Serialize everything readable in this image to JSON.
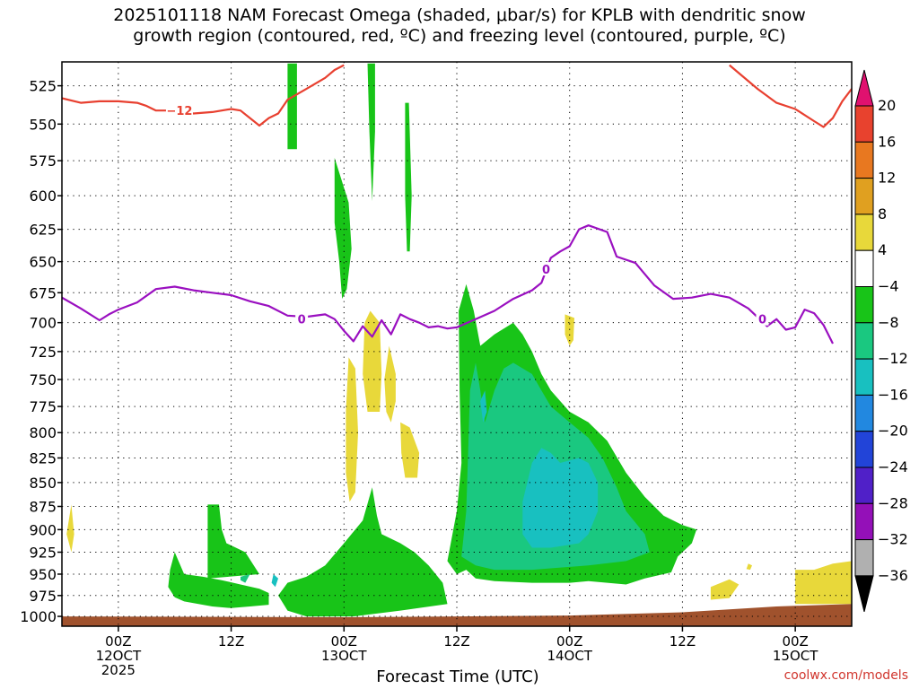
{
  "chart_data": {
    "type": "heatmap",
    "title": "2025101118 NAM Forecast Omega (shaded, μbar/s) for KPLB with dendritic snow\ngrowth region (contoured, red, ºC) and freezing level (contoured, purple, ºC)",
    "xlabel": "Forecast Time (UTC)",
    "credit": "coolwx.com/models",
    "y_ticks": [
      525,
      550,
      575,
      600,
      625,
      650,
      675,
      700,
      725,
      750,
      775,
      800,
      825,
      850,
      875,
      900,
      925,
      950,
      975,
      1000
    ],
    "y_range_hpa": [
      510,
      1012
    ],
    "y_scale": "log",
    "x_range_hours": [
      -6,
      78
    ],
    "x_ticks": [
      {
        "hour": 0,
        "lines": [
          "00Z",
          "12OCT",
          "2025"
        ]
      },
      {
        "hour": 12,
        "lines": [
          "12Z"
        ]
      },
      {
        "hour": 24,
        "lines": [
          "00Z",
          "13OCT"
        ]
      },
      {
        "hour": 36,
        "lines": [
          "12Z"
        ]
      },
      {
        "hour": 48,
        "lines": [
          "00Z",
          "14OCT"
        ]
      },
      {
        "hour": 60,
        "lines": [
          "12Z"
        ]
      },
      {
        "hour": 72,
        "lines": [
          "00Z",
          "15OCT"
        ]
      }
    ],
    "grid": true,
    "colorbar": {
      "placement": "right",
      "labels": [
        "20",
        "16",
        "12",
        "8",
        "4",
        "−4",
        "−8",
        "−12",
        "−16",
        "−20",
        "−24",
        "−28",
        "−32",
        "−36"
      ],
      "colors": [
        "#e0116f",
        "#e8422e",
        "#e87820",
        "#e0a020",
        "#e8d83a",
        "#ffffff",
        "#18c418",
        "#1ac880",
        "#18c0c0",
        "#2288e0",
        "#2244d8",
        "#5020c8",
        "#9410b8",
        "#b0b0b0",
        "#000000"
      ]
    },
    "colors": {
      "dgz_line": "#e84030",
      "freezing_line": "#9a10c0",
      "ground": "#a0522d",
      "omega_neg4": "#18c418",
      "omega_neg8": "#1ac880",
      "omega_neg12": "#18c0c0",
      "omega_pos4": "#e8d83a"
    },
    "contour_labels": [
      {
        "text": "−12",
        "hour": 6.5,
        "p": 541
      },
      {
        "text": "0",
        "hour": 19.5,
        "p": 697
      },
      {
        "text": "0",
        "hour": 45.5,
        "p": 656
      },
      {
        "text": "0",
        "hour": 68.5,
        "p": 697
      }
    ],
    "dgz_minus12": [
      [
        [
          -6,
          533
        ],
        [
          -4,
          536
        ],
        [
          -2,
          535
        ],
        [
          0,
          535
        ],
        [
          2,
          536
        ],
        [
          3,
          538
        ],
        [
          4,
          541
        ],
        [
          6,
          541
        ],
        [
          8,
          543
        ],
        [
          10,
          542
        ],
        [
          12,
          540
        ],
        [
          13,
          541
        ],
        [
          15,
          551
        ],
        [
          16,
          546
        ],
        [
          17,
          543
        ],
        [
          18,
          534
        ],
        [
          20,
          527
        ],
        [
          22,
          520
        ],
        [
          23,
          515
        ],
        [
          24,
          512
        ]
      ],
      [
        [
          65,
          512
        ],
        [
          66,
          517
        ],
        [
          68,
          527
        ],
        [
          70,
          536
        ],
        [
          72,
          540
        ],
        [
          74,
          548
        ],
        [
          75,
          552
        ],
        [
          76,
          546
        ],
        [
          77,
          535
        ],
        [
          78,
          527
        ]
      ]
    ],
    "freezing_level_0c": [
      [
        -6,
        679
      ],
      [
        -4,
        688
      ],
      [
        -2,
        698
      ],
      [
        -1,
        693
      ],
      [
        0,
        689
      ],
      [
        2,
        683
      ],
      [
        4,
        672
      ],
      [
        6,
        670
      ],
      [
        8,
        673
      ],
      [
        10,
        675
      ],
      [
        12,
        677
      ],
      [
        14,
        682
      ],
      [
        16,
        686
      ],
      [
        18,
        694
      ],
      [
        20,
        695
      ],
      [
        22,
        693
      ],
      [
        23,
        697
      ],
      [
        24,
        707
      ],
      [
        25,
        716
      ],
      [
        26,
        703
      ],
      [
        27,
        712
      ],
      [
        28,
        698
      ],
      [
        29,
        710
      ],
      [
        30,
        693
      ],
      [
        31,
        697
      ],
      [
        32,
        700
      ],
      [
        33,
        704
      ],
      [
        34,
        703
      ],
      [
        35,
        705
      ],
      [
        36,
        704
      ],
      [
        38,
        697
      ],
      [
        40,
        690
      ],
      [
        42,
        680
      ],
      [
        44,
        673
      ],
      [
        45,
        667
      ],
      [
        46,
        647
      ],
      [
        47,
        642
      ],
      [
        48,
        638
      ],
      [
        49,
        625
      ],
      [
        50,
        622
      ],
      [
        52,
        627
      ],
      [
        53,
        646
      ],
      [
        55,
        651
      ],
      [
        57,
        669
      ],
      [
        59,
        680
      ],
      [
        61,
        679
      ],
      [
        63,
        676
      ],
      [
        65,
        679
      ],
      [
        67,
        688
      ],
      [
        69,
        703
      ],
      [
        70,
        697
      ],
      [
        71,
        706
      ],
      [
        72,
        704
      ],
      [
        73,
        689
      ],
      [
        74,
        692
      ],
      [
        75,
        702
      ],
      [
        76,
        718
      ]
    ],
    "omega_areas": [
      {
        "level": "-4",
        "points": [
          [
            18,
            511
          ],
          [
            19,
            511
          ],
          [
            19,
            567
          ],
          [
            18,
            567
          ]
        ]
      },
      {
        "level": "-4",
        "points": [
          [
            26.5,
            511
          ],
          [
            27.3,
            511
          ],
          [
            27.3,
            555
          ],
          [
            27,
            604
          ],
          [
            26.7,
            555
          ]
        ]
      },
      {
        "level": "-4",
        "points": [
          [
            30.5,
            536
          ],
          [
            30.9,
            536
          ],
          [
            31.2,
            600
          ],
          [
            31,
            642
          ],
          [
            30.7,
            642
          ],
          [
            30.5,
            600
          ]
        ]
      },
      {
        "level": "-4",
        "points": [
          [
            23,
            573
          ],
          [
            24.5,
            605
          ],
          [
            24.8,
            640
          ],
          [
            24.3,
            672
          ],
          [
            23.8,
            680
          ],
          [
            23.5,
            650
          ],
          [
            23,
            620
          ]
        ]
      },
      {
        "level": "-4",
        "points": [
          [
            6,
            925
          ],
          [
            7,
            950
          ],
          [
            9,
            953
          ],
          [
            11,
            957
          ],
          [
            13,
            962
          ],
          [
            15,
            967
          ],
          [
            16,
            972
          ],
          [
            16,
            986
          ],
          [
            14,
            988
          ],
          [
            12,
            990
          ],
          [
            10,
            988
          ],
          [
            9,
            986
          ],
          [
            7,
            982
          ],
          [
            6,
            977
          ],
          [
            5.3,
            965
          ],
          [
            5.5,
            945
          ]
        ]
      },
      {
        "level": "-4",
        "points": [
          [
            9.5,
            873
          ],
          [
            10.7,
            873
          ],
          [
            11,
            900
          ],
          [
            11.5,
            915
          ],
          [
            13.5,
            925
          ],
          [
            15,
            950
          ],
          [
            9.5,
            955
          ]
        ]
      },
      {
        "level": "-4",
        "points": [
          [
            18,
            960
          ],
          [
            20,
            953
          ],
          [
            22,
            940
          ],
          [
            24,
            915
          ],
          [
            26,
            890
          ],
          [
            27,
            855
          ],
          [
            27.5,
            885
          ],
          [
            28,
            905
          ],
          [
            30,
            915
          ],
          [
            31.5,
            925
          ],
          [
            33,
            940
          ],
          [
            34.5,
            960
          ],
          [
            35,
            985
          ],
          [
            30,
            993
          ],
          [
            25,
            1000
          ],
          [
            20,
            1000
          ],
          [
            18,
            993
          ],
          [
            17,
            975
          ]
        ]
      },
      {
        "level": "-4",
        "points": [
          [
            35,
            935
          ],
          [
            36,
            880
          ],
          [
            36.5,
            830
          ],
          [
            36.3,
            760
          ],
          [
            36.2,
            690
          ],
          [
            37,
            668
          ],
          [
            37.8,
            690
          ],
          [
            38.5,
            720
          ],
          [
            40,
            710
          ],
          [
            42,
            700
          ],
          [
            43,
            710
          ],
          [
            44,
            725
          ],
          [
            45,
            745
          ],
          [
            46,
            760
          ],
          [
            48,
            780
          ],
          [
            50,
            790
          ],
          [
            52,
            808
          ],
          [
            54,
            840
          ],
          [
            56,
            865
          ],
          [
            58,
            885
          ],
          [
            60,
            895
          ],
          [
            61.5,
            900
          ],
          [
            61,
            915
          ],
          [
            59.5,
            930
          ],
          [
            58.8,
            948
          ],
          [
            56,
            955
          ],
          [
            54,
            962
          ],
          [
            50,
            958
          ],
          [
            48,
            960
          ],
          [
            44,
            960
          ],
          [
            40,
            958
          ],
          [
            38,
            955
          ],
          [
            37,
            945
          ],
          [
            36,
            950
          ]
        ]
      },
      {
        "level": "-8",
        "points": [
          [
            36.5,
            930
          ],
          [
            37,
            880
          ],
          [
            37.2,
            820
          ],
          [
            37.4,
            760
          ],
          [
            38,
            735
          ],
          [
            38.5,
            760
          ],
          [
            39,
            790
          ],
          [
            40,
            760
          ],
          [
            41,
            740
          ],
          [
            42,
            735
          ],
          [
            44,
            745
          ],
          [
            45,
            760
          ],
          [
            46,
            775
          ],
          [
            48,
            790
          ],
          [
            50,
            805
          ],
          [
            51.5,
            825
          ],
          [
            53,
            855
          ],
          [
            54,
            880
          ],
          [
            56,
            905
          ],
          [
            56.5,
            925
          ],
          [
            54,
            935
          ],
          [
            50,
            940
          ],
          [
            44,
            945
          ],
          [
            40,
            945
          ],
          [
            38,
            940
          ]
        ]
      },
      {
        "level": "-8",
        "points": [
          [
            13,
            953
          ],
          [
            14,
            950
          ],
          [
            13.5,
            960
          ],
          [
            13,
            957
          ]
        ]
      },
      {
        "level": "-12",
        "points": [
          [
            43,
            870
          ],
          [
            44,
            830
          ],
          [
            45,
            815
          ],
          [
            46,
            820
          ],
          [
            47,
            830
          ],
          [
            49,
            825
          ],
          [
            50,
            830
          ],
          [
            51,
            850
          ],
          [
            51,
            880
          ],
          [
            50,
            905
          ],
          [
            49,
            915
          ],
          [
            46,
            920
          ],
          [
            44,
            920
          ],
          [
            43,
            905
          ]
        ]
      },
      {
        "level": "-12",
        "points": [
          [
            38.5,
            770
          ],
          [
            39,
            760
          ],
          [
            39.2,
            780
          ],
          [
            38.8,
            790
          ]
        ]
      },
      {
        "level": "-12",
        "points": [
          [
            16.5,
            950
          ],
          [
            17,
            955
          ],
          [
            16.7,
            965
          ],
          [
            16.3,
            960
          ]
        ]
      },
      {
        "level": "4",
        "points": [
          [
            26.8,
            690
          ],
          [
            27.8,
            700
          ],
          [
            28,
            745
          ],
          [
            27.8,
            780
          ],
          [
            26.5,
            780
          ],
          [
            26,
            745
          ],
          [
            26.2,
            700
          ]
        ]
      },
      {
        "level": "4",
        "points": [
          [
            28.8,
            720
          ],
          [
            29.5,
            745
          ],
          [
            29.5,
            770
          ],
          [
            29,
            790
          ],
          [
            28.5,
            780
          ],
          [
            28.3,
            750
          ]
        ]
      },
      {
        "level": "4",
        "points": [
          [
            30,
            790
          ],
          [
            31,
            795
          ],
          [
            32,
            820
          ],
          [
            31.8,
            845
          ],
          [
            30.5,
            845
          ],
          [
            30.1,
            820
          ]
        ]
      },
      {
        "level": "4",
        "points": [
          [
            24.5,
            730
          ],
          [
            25.2,
            740
          ],
          [
            25.5,
            800
          ],
          [
            25.2,
            860
          ],
          [
            24.6,
            870
          ],
          [
            24.2,
            840
          ],
          [
            24.2,
            780
          ]
        ]
      },
      {
        "level": "4",
        "points": [
          [
            -5,
            873
          ],
          [
            -4.7,
            905
          ],
          [
            -5,
            925
          ],
          [
            -5.5,
            905
          ]
        ]
      },
      {
        "level": "4",
        "points": [
          [
            47.5,
            693
          ],
          [
            48.5,
            696
          ],
          [
            48.4,
            715
          ],
          [
            48,
            720
          ],
          [
            47.5,
            710
          ]
        ]
      },
      {
        "level": "4",
        "points": [
          [
            63,
            965
          ],
          [
            65,
            956
          ],
          [
            66,
            962
          ],
          [
            65,
            978
          ],
          [
            63,
            980
          ]
        ]
      },
      {
        "level": "4",
        "points": [
          [
            67,
            938
          ],
          [
            67.4,
            940
          ],
          [
            67.2,
            945
          ],
          [
            66.8,
            944
          ]
        ]
      },
      {
        "level": "4",
        "points": [
          [
            72,
            945
          ],
          [
            74,
            945
          ],
          [
            76,
            938
          ],
          [
            78,
            935
          ],
          [
            78,
            985
          ],
          [
            72,
            985
          ]
        ]
      }
    ],
    "ground_top": [
      [
        -6,
        1000
      ],
      [
        24,
        1001
      ],
      [
        36,
        1000
      ],
      [
        48,
        999
      ],
      [
        60,
        995
      ],
      [
        70,
        988
      ],
      [
        78,
        985
      ]
    ]
  }
}
